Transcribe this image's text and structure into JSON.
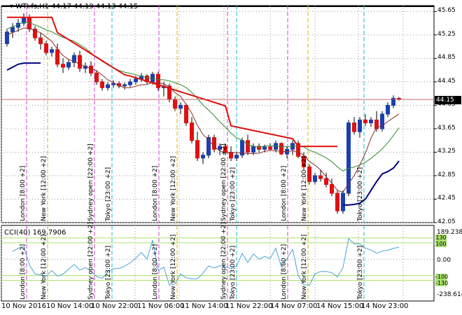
{
  "chart": {
    "symbol_label": "WTI.fs,H1",
    "ohlc": "44.17 44.19 44.13 44.15",
    "current_price": "44.15",
    "y_ticks": [
      "45.65",
      "45.25",
      "44.85",
      "44.45",
      "44.05",
      "43.65",
      "43.25",
      "42.85",
      "42.45",
      "42.05"
    ],
    "x_labels": [
      "10 Nov 2016",
      "10 Nov 14:00",
      "10 Nov 22:00",
      "11 Nov 06:00",
      "11 Nov 14:00",
      "11 Nov 22:00",
      "14 Nov 07:00",
      "14 Nov 15:00",
      "14 Nov 23:00"
    ],
    "sessions": [
      {
        "text": "London [8:00 +2]"
      },
      {
        "text": "New York [12:00 +2]"
      },
      {
        "text": "Sydney open [22:00 +2]"
      },
      {
        "text": "Tokyo [23:00 +2]"
      },
      {
        "text": "London [8:00 +2]"
      },
      {
        "text": "New York [12:00 +2]"
      },
      {
        "text": "Sydney open [22:00 +2]"
      },
      {
        "text": "Tokyo [23:00 +2]"
      },
      {
        "text": "London [8:00 +2]"
      },
      {
        "text": "New York [12:00 +2]"
      },
      {
        "text": "Tokyo [23:00 +2]"
      }
    ],
    "colors": {
      "bull": "#1a3fb0",
      "bear": "#e01010",
      "supertrend": "#e01010",
      "lower_band": "#000080",
      "ma_green": "#2e8b2e",
      "ma_brown": "#8b2d2d",
      "cci": "#4aa3d8",
      "grid": "#9a9a9a",
      "london": "#cc44cc",
      "newyork": "#d9b800",
      "sydney": "#cc44cc",
      "tokyo": "#22bbcc"
    }
  },
  "cci": {
    "label": "CCI(40) 169.7906",
    "y_ticks": [
      "189.2384",
      "0.00",
      "-238.614"
    ],
    "levels": [
      "130",
      "100",
      "-100",
      "-130"
    ]
  },
  "chart_data": {
    "type": "candlestick",
    "x_label": "",
    "y_label": "",
    "ylim": [
      42.05,
      45.75
    ],
    "candles": [
      [
        45.1,
        45.35,
        45.05,
        45.3
      ],
      [
        45.3,
        45.45,
        45.2,
        45.38
      ],
      [
        45.38,
        45.52,
        45.3,
        45.45
      ],
      [
        45.45,
        45.62,
        45.4,
        45.55
      ],
      [
        45.55,
        45.6,
        45.3,
        45.35
      ],
      [
        45.35,
        45.4,
        45.15,
        45.2
      ],
      [
        45.2,
        45.28,
        45.0,
        45.1
      ],
      [
        45.1,
        45.15,
        44.9,
        44.95
      ],
      [
        44.95,
        45.05,
        44.88,
        45.0
      ],
      [
        45.0,
        45.1,
        44.7,
        44.75
      ],
      [
        44.75,
        44.85,
        44.6,
        44.7
      ],
      [
        44.7,
        44.82,
        44.65,
        44.78
      ],
      [
        44.78,
        44.95,
        44.7,
        44.9
      ],
      [
        44.9,
        44.98,
        44.62,
        44.68
      ],
      [
        44.68,
        44.78,
        44.6,
        44.72
      ],
      [
        44.72,
        44.8,
        44.55,
        44.6
      ],
      [
        44.6,
        44.65,
        44.4,
        44.45
      ],
      [
        44.45,
        44.5,
        44.3,
        44.35
      ],
      [
        44.35,
        44.45,
        44.3,
        44.4
      ],
      [
        44.4,
        44.48,
        44.35,
        44.42
      ],
      [
        44.42,
        44.46,
        44.34,
        44.38
      ],
      [
        44.38,
        44.44,
        44.32,
        44.4
      ],
      [
        44.4,
        44.5,
        44.36,
        44.45
      ],
      [
        44.45,
        44.55,
        44.4,
        44.5
      ],
      [
        44.5,
        44.6,
        44.45,
        44.55
      ],
      [
        44.55,
        44.58,
        44.4,
        44.45
      ],
      [
        44.45,
        44.62,
        44.4,
        44.58
      ],
      [
        44.58,
        44.62,
        44.3,
        44.35
      ],
      [
        44.35,
        44.45,
        44.2,
        44.38
      ],
      [
        44.38,
        44.42,
        44.1,
        44.15
      ],
      [
        44.15,
        44.2,
        43.95,
        44.0
      ],
      [
        44.0,
        44.1,
        43.9,
        44.05
      ],
      [
        44.05,
        44.08,
        43.7,
        43.75
      ],
      [
        43.75,
        43.85,
        43.4,
        43.45
      ],
      [
        43.45,
        43.6,
        43.1,
        43.15
      ],
      [
        43.15,
        43.25,
        43.05,
        43.2
      ],
      [
        43.2,
        43.55,
        43.15,
        43.5
      ],
      [
        43.5,
        43.55,
        43.25,
        43.3
      ],
      [
        43.3,
        43.4,
        43.2,
        43.35
      ],
      [
        43.35,
        43.4,
        43.2,
        43.25
      ],
      [
        43.25,
        43.35,
        43.1,
        43.15
      ],
      [
        43.15,
        43.25,
        43.1,
        43.2
      ],
      [
        43.2,
        43.5,
        43.15,
        43.45
      ],
      [
        43.45,
        43.55,
        43.2,
        43.25
      ],
      [
        43.25,
        43.4,
        43.2,
        43.35
      ],
      [
        43.35,
        43.4,
        43.25,
        43.3
      ],
      [
        43.3,
        43.38,
        43.25,
        43.34
      ],
      [
        43.34,
        43.4,
        43.28,
        43.3
      ],
      [
        43.3,
        43.45,
        43.25,
        43.4
      ],
      [
        43.4,
        43.42,
        43.2,
        43.22
      ],
      [
        43.22,
        43.35,
        43.15,
        43.3
      ],
      [
        43.3,
        43.45,
        43.2,
        43.4
      ],
      [
        43.4,
        43.45,
        43.15,
        43.18
      ],
      [
        43.18,
        43.25,
        42.95,
        43.0
      ],
      [
        43.0,
        43.05,
        42.7,
        42.75
      ],
      [
        42.75,
        42.9,
        42.7,
        42.85
      ],
      [
        42.85,
        42.95,
        42.75,
        42.8
      ],
      [
        42.8,
        42.9,
        42.65,
        42.7
      ],
      [
        42.7,
        42.8,
        42.5,
        42.55
      ],
      [
        42.55,
        42.6,
        42.2,
        42.25
      ],
      [
        42.25,
        42.6,
        42.2,
        42.55
      ],
      [
        42.55,
        43.8,
        42.5,
        43.75
      ],
      [
        43.75,
        43.85,
        43.55,
        43.6
      ],
      [
        43.6,
        43.85,
        43.5,
        43.8
      ],
      [
        43.8,
        43.9,
        43.7,
        43.75
      ],
      [
        43.75,
        43.85,
        43.68,
        43.8
      ],
      [
        43.8,
        43.95,
        43.6,
        43.65
      ],
      [
        43.65,
        43.95,
        43.6,
        43.9
      ],
      [
        43.9,
        44.1,
        43.85,
        44.05
      ],
      [
        44.05,
        44.22,
        44.0,
        44.17
      ],
      [
        44.17,
        44.19,
        44.13,
        44.15
      ]
    ]
  }
}
